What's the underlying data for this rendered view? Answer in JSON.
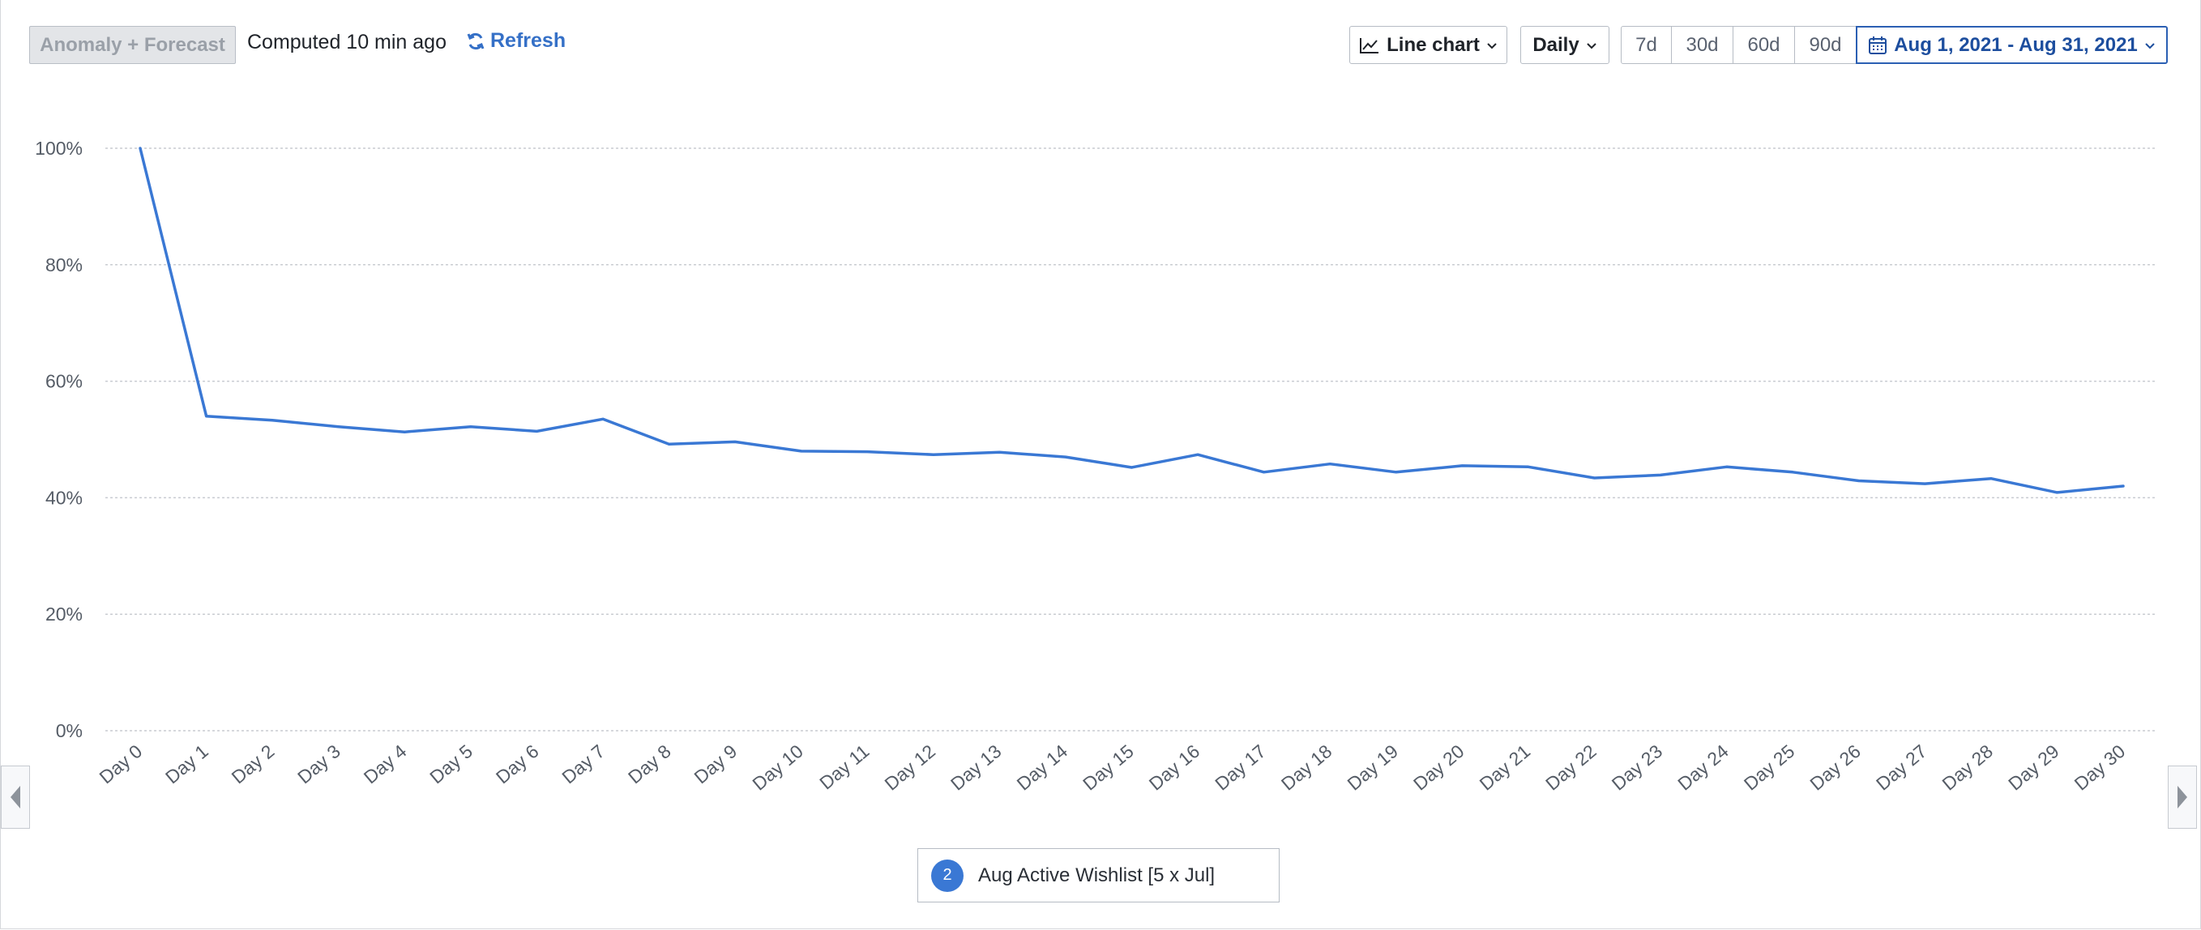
{
  "toolbar": {
    "anomaly_label": "Anomaly + Forecast",
    "computed_text": "Computed 10 min ago",
    "refresh_label": "Refresh",
    "chart_type_label": "Line chart",
    "interval_label": "Daily",
    "ranges": [
      "7d",
      "30d",
      "60d",
      "90d"
    ],
    "date_range_label": "Aug 1, 2021 - Aug 31, 2021"
  },
  "legend": {
    "badge": "2",
    "label": "Aug Active Wishlist [5 x Jul]"
  },
  "colors": {
    "series": "#3a78d4",
    "accent": "#2b5fb3",
    "grid": "#c9ccd1"
  },
  "chart_data": {
    "type": "line",
    "x": [
      "Day 0",
      "Day 1",
      "Day 2",
      "Day 3",
      "Day 4",
      "Day 5",
      "Day 6",
      "Day 7",
      "Day 8",
      "Day 9",
      "Day 10",
      "Day 11",
      "Day 12",
      "Day 13",
      "Day 14",
      "Day 15",
      "Day 16",
      "Day 17",
      "Day 18",
      "Day 19",
      "Day 20",
      "Day 21",
      "Day 22",
      "Day 23",
      "Day 24",
      "Day 25",
      "Day 26",
      "Day 27",
      "Day 28",
      "Day 29",
      "Day 30"
    ],
    "series": [
      {
        "name": "Aug Active Wishlist [5 x Jul]",
        "values": [
          100,
          54.0,
          53.3,
          52.2,
          51.3,
          52.2,
          51.4,
          53.5,
          49.2,
          49.6,
          48.0,
          47.9,
          47.4,
          47.8,
          47.0,
          45.2,
          47.4,
          44.4,
          45.8,
          44.4,
          45.5,
          45.3,
          43.4,
          43.9,
          45.3,
          44.4,
          42.9,
          42.4,
          43.3,
          40.9,
          42.0
        ]
      }
    ],
    "yticks": [
      "0%",
      "20%",
      "40%",
      "60%",
      "80%",
      "100%"
    ],
    "ylim": [
      0,
      100
    ],
    "grid": true,
    "legend_position": "bottom-center"
  }
}
